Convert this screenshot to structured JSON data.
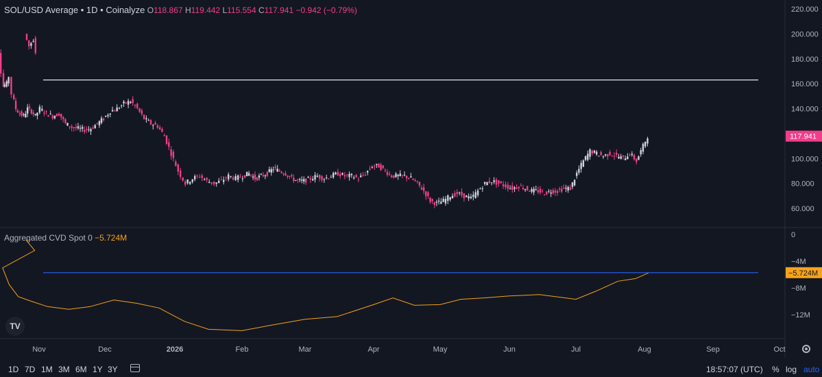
{
  "legend": {
    "symbol": "SOL/USD Average • 1D • Coinalyze",
    "o_label": "O",
    "o_value": "118.867",
    "h_label": "H",
    "h_value": "119.442",
    "l_label": "L",
    "l_value": "115.554",
    "c_label": "C",
    "c_value": "117.941",
    "change": "−0.942 (−0.79%)"
  },
  "cvd_legend": {
    "name": "Aggregated CVD Spot 0",
    "value": "−5.724M"
  },
  "price_axis": {
    "labels": [
      "220.000",
      "200.000",
      "180.000",
      "160.000",
      "140.000",
      "120.000",
      "100.000",
      "80.000",
      "60.000"
    ],
    "last_price": "117.941"
  },
  "cvd_axis": {
    "labels": [
      "0",
      "−4M",
      "−8M",
      "−12M"
    ],
    "last_value": "−5.724M"
  },
  "time_axis": [
    "Nov",
    "Dec",
    "2026",
    "Feb",
    "Mar",
    "Apr",
    "May",
    "Jun",
    "Jul",
    "Aug",
    "Sep",
    "Oct"
  ],
  "bottom_toolbar": {
    "timeframes": [
      "1D",
      "7D",
      "1M",
      "3M",
      "6M",
      "1Y",
      "3Y"
    ],
    "clock": "18:57:07 (UTC)",
    "percent": "%",
    "log": "log",
    "auto": "auto"
  },
  "logo_text": "TV",
  "colors": {
    "up": "#d1d4dc",
    "down": "#f23d8b",
    "cvd": "#f7a21b",
    "hline_cvd": "#2962ff",
    "hline_price": "#ffffff",
    "bg": "#131722"
  },
  "chart_data": [
    {
      "type": "candlestick",
      "series": [
        {
          "name": "SOL/USD Average",
          "values": [
            {
              "x": "Oct 26",
              "c": 200
            },
            {
              "x": "Oct 28",
              "c": 190
            },
            {
              "x": "Oct 30",
              "c": 196
            },
            {
              "x": "Nov 1",
              "c": 186
            },
            {
              "x": "Nov 3",
              "c": 170
            },
            {
              "x": "Nov 4",
              "c": 158
            },
            {
              "x": "Nov 7",
              "c": 160
            },
            {
              "x": "Nov 9",
              "c": 166
            },
            {
              "x": "Nov 11",
              "c": 152
            },
            {
              "x": "Nov 14",
              "c": 140
            },
            {
              "x": "Nov 17",
              "c": 136
            },
            {
              "x": "Nov 20",
              "c": 134
            },
            {
              "x": "Nov 23",
              "c": 140
            },
            {
              "x": "Nov 26",
              "c": 138
            },
            {
              "x": "Nov 29",
              "c": 134
            },
            {
              "x": "Dec 2",
              "c": 140
            },
            {
              "x": "Dec 5",
              "c": 136
            },
            {
              "x": "Dec 8",
              "c": 134
            },
            {
              "x": "Dec 11",
              "c": 136
            },
            {
              "x": "Dec 14",
              "c": 128
            },
            {
              "x": "Dec 17",
              "c": 125
            },
            {
              "x": "Dec 20",
              "c": 124
            },
            {
              "x": "Dec 23",
              "c": 123
            },
            {
              "x": "Dec 26",
              "c": 124
            },
            {
              "x": "Dec 29",
              "c": 128
            },
            {
              "x": "Jan 1",
              "c": 132
            },
            {
              "x": "Jan 4",
              "c": 138
            },
            {
              "x": "Jan 7",
              "c": 140
            },
            {
              "x": "Jan 10",
              "c": 144
            },
            {
              "x": "Jan 13",
              "c": 146
            },
            {
              "x": "Jan 16",
              "c": 140
            },
            {
              "x": "Jan 19",
              "c": 132
            },
            {
              "x": "Jan 22",
              "c": 128
            },
            {
              "x": "Jan 25",
              "c": 126
            },
            {
              "x": "Jan 28",
              "c": 118
            },
            {
              "x": "Jan 31",
              "c": 104
            },
            {
              "x": "Feb 3",
              "c": 90
            },
            {
              "x": "Feb 6",
              "c": 80
            },
            {
              "x": "Feb 9",
              "c": 84
            },
            {
              "x": "Feb 12",
              "c": 86
            },
            {
              "x": "Feb 15",
              "c": 82
            },
            {
              "x": "Feb 18",
              "c": 80
            },
            {
              "x": "Feb 21",
              "c": 82
            },
            {
              "x": "Feb 24",
              "c": 86
            },
            {
              "x": "Feb 27",
              "c": 84
            },
            {
              "x": "Mar 2",
              "c": 86
            },
            {
              "x": "Mar 5",
              "c": 88
            },
            {
              "x": "Mar 8",
              "c": 84
            },
            {
              "x": "Mar 11",
              "c": 86
            },
            {
              "x": "Mar 14",
              "c": 88
            },
            {
              "x": "Mar 17",
              "c": 92
            },
            {
              "x": "Mar 20",
              "c": 90
            },
            {
              "x": "Mar 23",
              "c": 88
            },
            {
              "x": "Mar 26",
              "c": 84
            },
            {
              "x": "Mar 29",
              "c": 82
            },
            {
              "x": "Apr 1",
              "c": 82
            },
            {
              "x": "Apr 4",
              "c": 84
            },
            {
              "x": "Apr 7",
              "c": 86
            },
            {
              "x": "Apr 10",
              "c": 84
            },
            {
              "x": "Apr 13",
              "c": 86
            },
            {
              "x": "Apr 16",
              "c": 88
            },
            {
              "x": "Apr 19",
              "c": 86
            },
            {
              "x": "Apr 22",
              "c": 86
            },
            {
              "x": "Apr 25",
              "c": 84
            },
            {
              "x": "Apr 28",
              "c": 88
            },
            {
              "x": "May 1",
              "c": 94
            },
            {
              "x": "May 4",
              "c": 94
            },
            {
              "x": "May 7",
              "c": 90
            },
            {
              "x": "May 10",
              "c": 86
            },
            {
              "x": "May 13",
              "c": 86
            },
            {
              "x": "May 16",
              "c": 86
            },
            {
              "x": "May 19",
              "c": 84
            },
            {
              "x": "May 22",
              "c": 80
            },
            {
              "x": "May 25",
              "c": 74
            },
            {
              "x": "May 28",
              "c": 66
            },
            {
              "x": "May 31",
              "c": 64
            },
            {
              "x": "Jun 3",
              "c": 66
            },
            {
              "x": "Jun 6",
              "c": 70
            },
            {
              "x": "Jun 9",
              "c": 72
            },
            {
              "x": "Jun 12",
              "c": 70
            },
            {
              "x": "Jun 15",
              "c": 68
            },
            {
              "x": "Jun 18",
              "c": 74
            },
            {
              "x": "Jun 21",
              "c": 80
            },
            {
              "x": "Jun 24",
              "c": 82
            },
            {
              "x": "Jun 27",
              "c": 80
            },
            {
              "x": "Jun 30",
              "c": 78
            },
            {
              "x": "Jul 3",
              "c": 76
            },
            {
              "x": "Jul 6",
              "c": 78
            },
            {
              "x": "Jul 9",
              "c": 76
            },
            {
              "x": "Jul 12",
              "c": 74
            },
            {
              "x": "Jul 15",
              "c": 74
            },
            {
              "x": "Jul 18",
              "c": 72
            },
            {
              "x": "Jul 21",
              "c": 74
            },
            {
              "x": "Jul 24",
              "c": 74
            },
            {
              "x": "Jul 27",
              "c": 76
            },
            {
              "x": "Jul 30",
              "c": 76
            },
            {
              "x": "Aug 2",
              "c": 88
            },
            {
              "x": "Aug 5",
              "c": 98
            },
            {
              "x": "Aug 8",
              "c": 106
            },
            {
              "x": "Aug 11",
              "c": 104
            },
            {
              "x": "Aug 14",
              "c": 102
            },
            {
              "x": "Aug 17",
              "c": 104
            },
            {
              "x": "Aug 20",
              "c": 102
            },
            {
              "x": "Aug 23",
              "c": 100
            },
            {
              "x": "Aug 26",
              "c": 104
            },
            {
              "x": "Aug 29",
              "c": 98
            },
            {
              "x": "Sep 1",
              "c": 110
            },
            {
              "x": "Sep 3",
              "c": 118
            }
          ]
        }
      ],
      "horizontal_line": 163,
      "y_range": [
        50,
        225
      ],
      "y_log_scale": false
    },
    {
      "type": "line",
      "series": [
        {
          "name": "Aggregated CVD Spot 0",
          "values": [
            {
              "x": "Oct 26",
              "y": -0.8
            },
            {
              "x": "Oct 30",
              "y": -2.4
            },
            {
              "x": "Nov 3",
              "y": -5.0
            },
            {
              "x": "Nov 8",
              "y": -7.5
            },
            {
              "x": "Nov 15",
              "y": -9.3
            },
            {
              "x": "Nov 25",
              "y": -10.0
            },
            {
              "x": "Dec 5",
              "y": -10.8
            },
            {
              "x": "Dec 15",
              "y": -11.2
            },
            {
              "x": "Dec 25",
              "y": -10.8
            },
            {
              "x": "Jan 5",
              "y": -9.8
            },
            {
              "x": "Jan 15",
              "y": -10.3
            },
            {
              "x": "Jan 25",
              "y": -11.0
            },
            {
              "x": "Feb 5",
              "y": -13.0
            },
            {
              "x": "Feb 15",
              "y": -14.2
            },
            {
              "x": "Mar 1",
              "y": -14.4
            },
            {
              "x": "Mar 15",
              "y": -13.6
            },
            {
              "x": "Apr 1",
              "y": -12.7
            },
            {
              "x": "Apr 15",
              "y": -12.3
            },
            {
              "x": "May 1",
              "y": -10.5
            },
            {
              "x": "May 10",
              "y": -9.5
            },
            {
              "x": "May 20",
              "y": -10.6
            },
            {
              "x": "Jun 1",
              "y": -10.5
            },
            {
              "x": "Jun 10",
              "y": -9.7
            },
            {
              "x": "Jun 20",
              "y": -9.5
            },
            {
              "x": "Jul 1",
              "y": -9.2
            },
            {
              "x": "Jul 15",
              "y": -9.0
            },
            {
              "x": "Aug 1",
              "y": -9.7
            },
            {
              "x": "Aug 10",
              "y": -8.5
            },
            {
              "x": "Aug 20",
              "y": -7.0
            },
            {
              "x": "Aug 28",
              "y": -6.6
            },
            {
              "x": "Sep 3",
              "y": -5.724
            }
          ]
        }
      ],
      "horizontal_line": -5.724,
      "y_range": [
        -15,
        1
      ]
    }
  ]
}
